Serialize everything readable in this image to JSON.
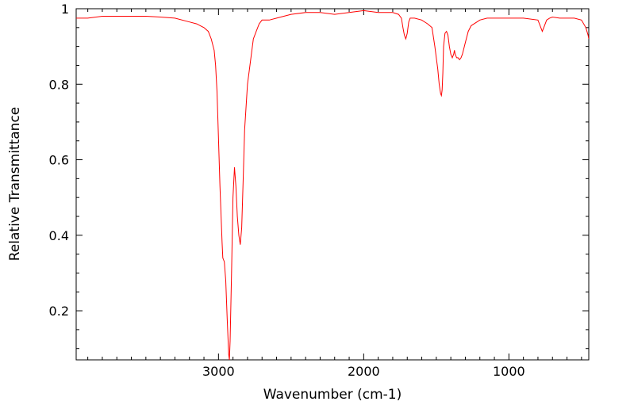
{
  "chart_data": {
    "type": "line",
    "title": "",
    "xlabel": "Wavenumber (cm-1)",
    "ylabel": "Relative Transmittance",
    "xlim": [
      3980,
      450
    ],
    "ylim": [
      0.07,
      1.0
    ],
    "x_reversed": true,
    "grid": false,
    "legend": "none",
    "line_color": "#ff0000",
    "x_ticks": [
      {
        "value": 3000,
        "label": "3000"
      },
      {
        "value": 2000,
        "label": "2000"
      },
      {
        "value": 1000,
        "label": "1000"
      }
    ],
    "y_ticks": [
      {
        "value": 1.0,
        "label": "1"
      },
      {
        "value": 0.8,
        "label": "0.8"
      },
      {
        "value": 0.6,
        "label": "0.6"
      },
      {
        "value": 0.4,
        "label": "0.4"
      },
      {
        "value": 0.2,
        "label": "0.2"
      }
    ],
    "series": [
      {
        "x": [
          3980,
          3900,
          3800,
          3700,
          3600,
          3500,
          3400,
          3300,
          3200,
          3150,
          3100,
          3070,
          3050,
          3030,
          3020,
          3010,
          3000,
          2990,
          2980,
          2975,
          2970,
          2960,
          2950,
          2940,
          2930,
          2925,
          2920,
          2910,
          2900,
          2890,
          2880,
          2870,
          2860,
          2850,
          2840,
          2830,
          2820,
          2800,
          2780,
          2760,
          2740,
          2720,
          2700,
          2650,
          2600,
          2500,
          2400,
          2300,
          2200,
          2100,
          2000,
          1900,
          1800,
          1760,
          1740,
          1730,
          1720,
          1710,
          1700,
          1690,
          1680,
          1650,
          1600,
          1560,
          1530,
          1510,
          1490,
          1480,
          1470,
          1465,
          1460,
          1455,
          1450,
          1440,
          1430,
          1420,
          1410,
          1400,
          1390,
          1380,
          1375,
          1370,
          1360,
          1350,
          1340,
          1330,
          1320,
          1300,
          1280,
          1260,
          1240,
          1220,
          1200,
          1150,
          1100,
          1000,
          900,
          800,
          790,
          780,
          770,
          760,
          750,
          740,
          720,
          700,
          650,
          600,
          550,
          500,
          470,
          455,
          450
        ],
        "y": [
          0.975,
          0.975,
          0.98,
          0.98,
          0.98,
          0.98,
          0.978,
          0.975,
          0.965,
          0.96,
          0.95,
          0.94,
          0.92,
          0.89,
          0.85,
          0.78,
          0.66,
          0.53,
          0.43,
          0.38,
          0.34,
          0.33,
          0.28,
          0.18,
          0.085,
          0.07,
          0.12,
          0.3,
          0.5,
          0.58,
          0.53,
          0.45,
          0.4,
          0.375,
          0.42,
          0.55,
          0.68,
          0.8,
          0.86,
          0.92,
          0.94,
          0.96,
          0.97,
          0.97,
          0.975,
          0.985,
          0.99,
          0.99,
          0.985,
          0.99,
          0.995,
          0.99,
          0.99,
          0.985,
          0.975,
          0.95,
          0.93,
          0.92,
          0.935,
          0.965,
          0.975,
          0.975,
          0.97,
          0.96,
          0.95,
          0.9,
          0.84,
          0.8,
          0.775,
          0.77,
          0.785,
          0.83,
          0.9,
          0.935,
          0.94,
          0.93,
          0.9,
          0.88,
          0.87,
          0.88,
          0.89,
          0.88,
          0.87,
          0.87,
          0.865,
          0.87,
          0.88,
          0.91,
          0.94,
          0.955,
          0.96,
          0.965,
          0.97,
          0.975,
          0.975,
          0.975,
          0.975,
          0.97,
          0.96,
          0.95,
          0.94,
          0.95,
          0.96,
          0.97,
          0.975,
          0.978,
          0.975,
          0.975,
          0.975,
          0.97,
          0.95,
          0.93,
          0.92
        ]
      }
    ]
  }
}
